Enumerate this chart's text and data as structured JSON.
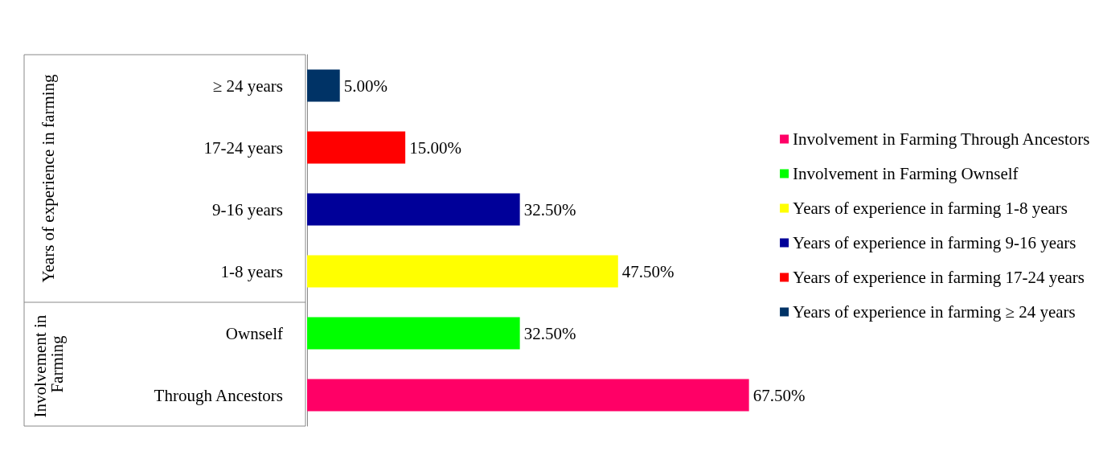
{
  "chart_data": {
    "type": "bar",
    "orientation": "horizontal",
    "stacked": true,
    "legend": "right",
    "categories": [
      "≥ 24 years",
      "17-24 years",
      "9-16 years",
      "1-8 years",
      "Ownself",
      "Through Ancestors"
    ],
    "annotations": [
      "Years of experience in farming",
      "Involvement in Farming"
    ],
    "series": [
      {
        "name": "Involvement in Farming Through Ancestors",
        "color": "#ff0066",
        "values": [
          null,
          null,
          null,
          null,
          null,
          67.5
        ],
        "value_labels": [
          null,
          null,
          null,
          null,
          null,
          "67.50%"
        ]
      },
      {
        "name": "Involvement in Farming Ownself",
        "color": "#00ff00",
        "values": [
          null,
          null,
          null,
          null,
          32.5,
          null
        ],
        "value_labels": [
          null,
          null,
          null,
          null,
          "32.50%",
          null
        ]
      },
      {
        "name": "Years of experience in farming 1-8 years",
        "color": "#ffff00",
        "values": [
          null,
          null,
          null,
          47.5,
          null,
          null
        ],
        "value_labels": [
          null,
          null,
          null,
          "47.50%",
          null,
          null
        ]
      },
      {
        "name": "Years of experience in farming 9-16 years",
        "color": "#000099",
        "values": [
          null,
          null,
          32.5,
          null,
          null,
          null
        ],
        "value_labels": [
          null,
          null,
          "32.50%",
          null,
          null,
          null
        ]
      },
      {
        "name": "Years of experience in farming 17-24 years",
        "color": "#ff0000",
        "values": [
          null,
          15,
          null,
          null,
          null,
          null
        ],
        "value_labels": [
          null,
          "15.00%",
          null,
          null,
          null,
          null
        ]
      },
      {
        "name": "Years of experience in farming ≥ 24 years",
        "color": "#003366",
        "values": [
          5,
          null,
          null,
          null,
          null,
          null
        ],
        "value_labels": [
          "5.00%",
          null,
          null,
          null,
          null,
          null
        ]
      }
    ]
  }
}
